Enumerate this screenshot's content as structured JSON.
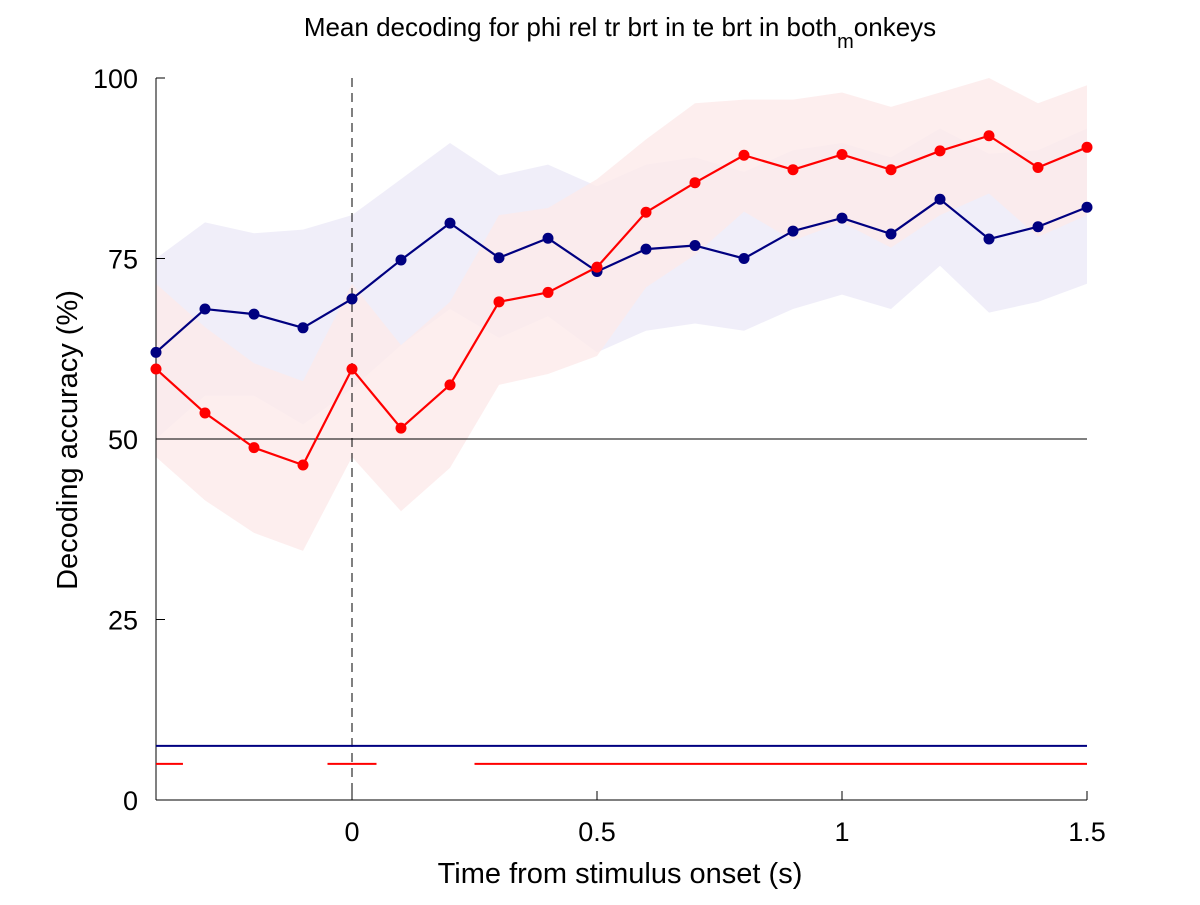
{
  "chart_data": {
    "type": "line",
    "title_main": "Mean decoding for phi rel tr brt in te brt in  both",
    "title_sub": "m",
    "title_tail": "onkeys",
    "xlabel": "Time from stimulus onset (s)",
    "ylabel": "Decoding accuracy (%)",
    "xlim": [
      -0.4,
      1.5
    ],
    "ylim": [
      0,
      100
    ],
    "xticks": [
      0,
      0.5,
      1,
      1.5
    ],
    "xtick_labels": [
      "0",
      "0.5",
      "1",
      "1.5"
    ],
    "yticks": [
      0,
      25,
      50,
      75,
      100
    ],
    "ytick_labels": [
      "0",
      "25",
      "50",
      "75",
      "100"
    ],
    "grid": false,
    "chance_level": 50,
    "stimulus_onset": 0,
    "x": [
      -0.4,
      -0.3,
      -0.2,
      -0.1,
      0,
      0.1,
      0.2,
      0.3,
      0.4,
      0.5,
      0.6,
      0.7,
      0.8,
      0.9,
      1.0,
      1.1,
      1.2,
      1.3,
      1.4,
      1.5
    ],
    "series": [
      {
        "color": "#000080",
        "band_color": "#eceaf7",
        "values": [
          62,
          68,
          67.3,
          65.4,
          69.4,
          74.8,
          79.9,
          75.1,
          77.8,
          73.2,
          76.3,
          76.8,
          75,
          78.8,
          80.6,
          78.4,
          83.2,
          77.7,
          79.4,
          82.1
        ],
        "lower": [
          50,
          56,
          56,
          52,
          57,
          63,
          68,
          64,
          67,
          62,
          65,
          66,
          65,
          68,
          70,
          68,
          74,
          67.5,
          69,
          71.5
        ],
        "upper": [
          75,
          80,
          78.5,
          79,
          81,
          86,
          91,
          86.5,
          88,
          85,
          88,
          89,
          87,
          90,
          91,
          89,
          93,
          89.5,
          90,
          93
        ],
        "significance": [
          [
            -0.4,
            1.5
          ]
        ]
      },
      {
        "color": "#ff0000",
        "band_color": "#fdeaea",
        "values": [
          59.7,
          53.6,
          48.8,
          46.4,
          59.7,
          51.5,
          57.5,
          69,
          70.3,
          73.8,
          81.4,
          85.5,
          89.3,
          87.3,
          89.4,
          87.3,
          89.9,
          92,
          87.6,
          90.4
        ],
        "lower": [
          47.5,
          41.5,
          37,
          34.5,
          47.5,
          40,
          46,
          57.5,
          59,
          61.5,
          71,
          75.5,
          81.5,
          77.5,
          80,
          76.5,
          81,
          84,
          78,
          81
        ],
        "upper": [
          71.5,
          65.5,
          60.5,
          58,
          71.5,
          63,
          69,
          81,
          82,
          86,
          91.5,
          96.5,
          97,
          97,
          98,
          96,
          98,
          100,
          96.5,
          99
        ],
        "significance": [
          [
            -0.4,
            -0.345
          ],
          [
            -0.05,
            0.05
          ],
          [
            0.25,
            1.5
          ]
        ]
      }
    ],
    "significance_y": [
      7.5,
      5
    ]
  }
}
